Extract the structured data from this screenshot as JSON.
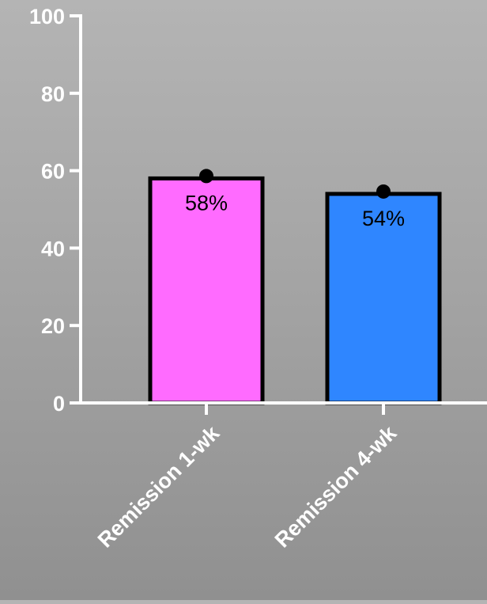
{
  "chart_data": {
    "type": "bar",
    "categories": [
      "Remission 1-wk",
      "Remission 4-wk"
    ],
    "values": [
      58,
      54
    ],
    "data_labels": [
      "58%",
      "54%"
    ],
    "bar_colors": [
      "#ff6bff",
      "#2f86ff"
    ],
    "title": "",
    "xlabel": "",
    "ylabel": "",
    "ylim": [
      0,
      100
    ],
    "yticks": [
      0,
      20,
      40,
      60,
      80,
      100
    ],
    "ytick_labels": [
      "0",
      "20",
      "40",
      "60",
      "80",
      "100"
    ],
    "grid": false,
    "legend": "none",
    "point_markers": true
  },
  "colors": {
    "axis": "#ffffff",
    "bar_outline": "#000000",
    "point": "#000000",
    "tick_label": "#ffffff",
    "data_label": "#000000"
  }
}
